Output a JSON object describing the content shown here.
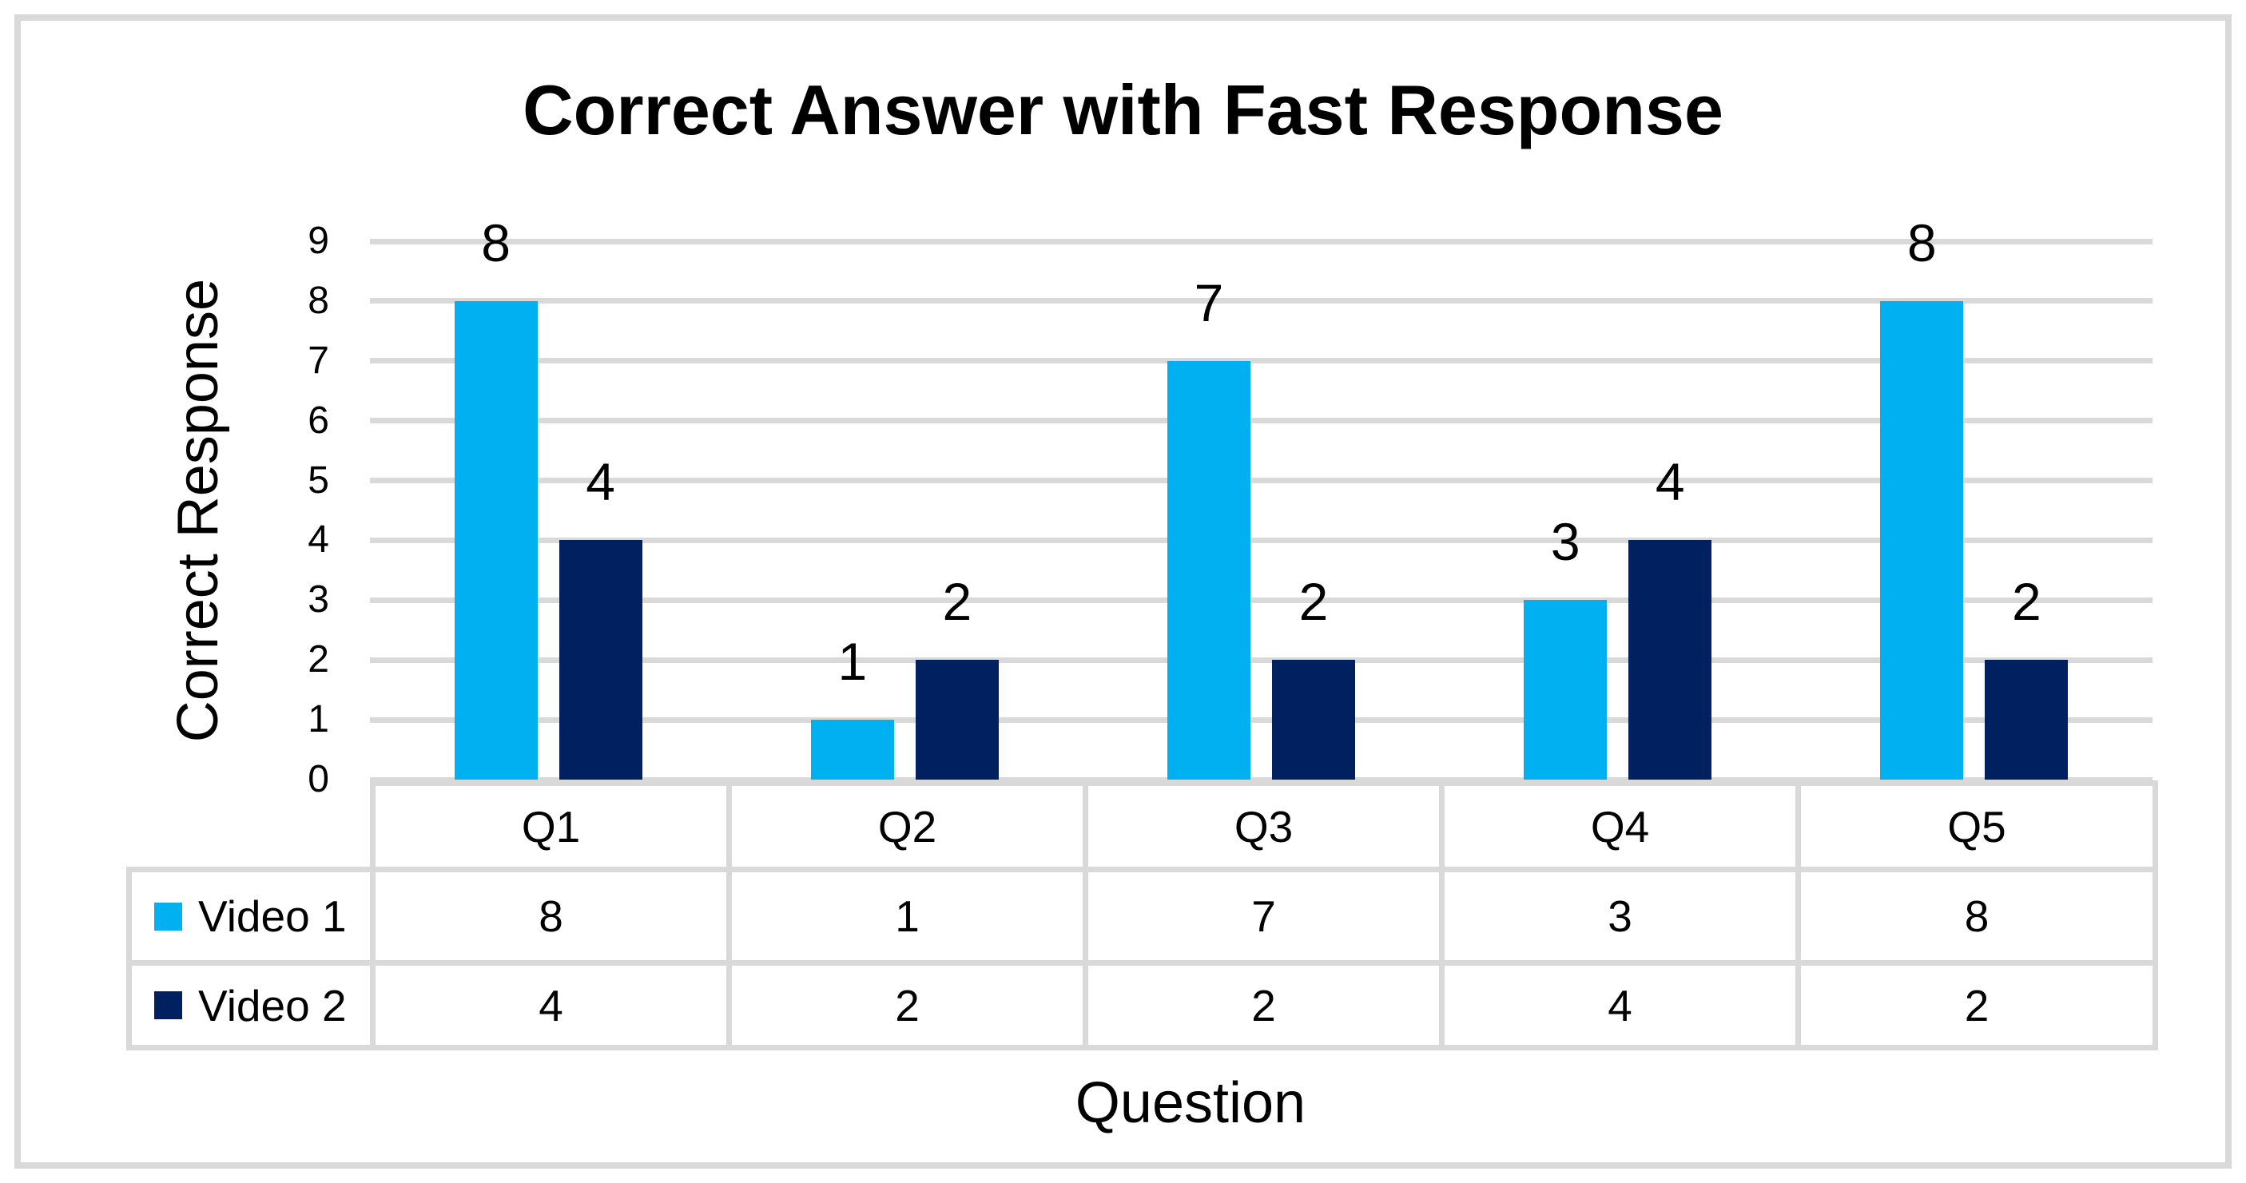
{
  "chart_data": {
    "type": "bar",
    "title": "Correct Answer with Fast Response",
    "xlabel": "Question",
    "ylabel": "Correct Response",
    "categories": [
      "Q1",
      "Q2",
      "Q3",
      "Q4",
      "Q5"
    ],
    "series": [
      {
        "name": "Video 1",
        "color": "#00B0F0",
        "values": [
          8,
          1,
          7,
          3,
          8
        ]
      },
      {
        "name": "Video 2",
        "color": "#002060",
        "values": [
          4,
          2,
          2,
          4,
          2
        ]
      }
    ],
    "ylim": [
      0,
      9
    ],
    "ytick_step": 1,
    "yticks": [
      0,
      1,
      2,
      3,
      4,
      5,
      6,
      7,
      8,
      9
    ],
    "grid": true,
    "data_labels": true,
    "legend_position": "data-table-left",
    "data_table": true
  },
  "colors": {
    "series_video_1": "#00B0F0",
    "series_video_2": "#002060",
    "gridline": "#D9D9D9",
    "table_border": "#D9D9D9",
    "frame_border": "#D9D9D9",
    "text": "#000000",
    "background": "#FFFFFF"
  }
}
